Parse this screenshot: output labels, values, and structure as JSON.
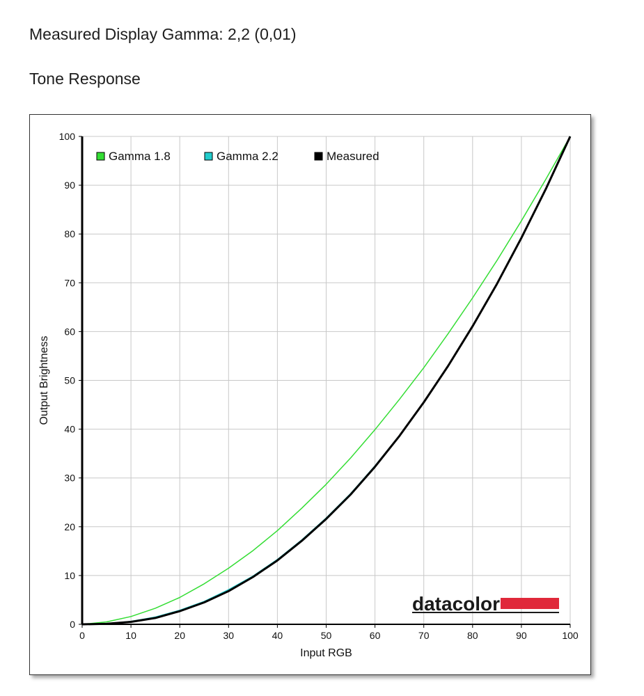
{
  "page": {
    "heading_gamma": "Measured Display Gamma: 2,2 (0,01)",
    "heading_tone": "Tone Response"
  },
  "logo": {
    "text": "datacolor",
    "accent_color": "#e0283a"
  },
  "colors": {
    "gamma18": "#33dd33",
    "gamma22": "#22cccc",
    "measured": "#000000",
    "grid": "#c8c8c8"
  },
  "chart_data": {
    "type": "line",
    "title": "",
    "xlabel": "Input RGB",
    "ylabel": "Output Brightness",
    "xlim": [
      0,
      100
    ],
    "ylim": [
      0,
      100
    ],
    "xticks": [
      0,
      10,
      20,
      30,
      40,
      50,
      60,
      70,
      80,
      90,
      100
    ],
    "yticks": [
      0,
      10,
      20,
      30,
      40,
      50,
      60,
      70,
      80,
      90,
      100
    ],
    "grid": true,
    "legend_position": "top-left",
    "x": [
      0,
      5,
      10,
      15,
      20,
      25,
      30,
      35,
      40,
      45,
      50,
      55,
      60,
      65,
      70,
      75,
      80,
      85,
      90,
      95,
      100
    ],
    "series": [
      {
        "name": "Gamma 1.8",
        "color": "#33dd33",
        "values": [
          0,
          0.5,
          1.6,
          3.3,
          5.5,
          8.3,
          11.5,
          15.1,
          19.2,
          23.8,
          28.7,
          34.1,
          39.9,
          46.1,
          52.6,
          59.6,
          66.9,
          74.6,
          82.7,
          91.2,
          100
        ]
      },
      {
        "name": "Gamma 2.2",
        "color": "#22cccc",
        "values": [
          0,
          0.1,
          0.6,
          1.5,
          2.9,
          4.7,
          7.1,
          9.9,
          13.3,
          17.3,
          21.8,
          26.8,
          32.5,
          38.7,
          45.6,
          53.1,
          61.2,
          69.9,
          79.3,
          89.3,
          100
        ]
      },
      {
        "name": "Measured",
        "color": "#000000",
        "values": [
          0,
          0.1,
          0.5,
          1.3,
          2.7,
          4.5,
          6.8,
          9.7,
          13.1,
          17.1,
          21.6,
          26.6,
          32.3,
          38.6,
          45.5,
          53.0,
          61.1,
          69.8,
          79.2,
          89.2,
          100
        ]
      }
    ]
  }
}
